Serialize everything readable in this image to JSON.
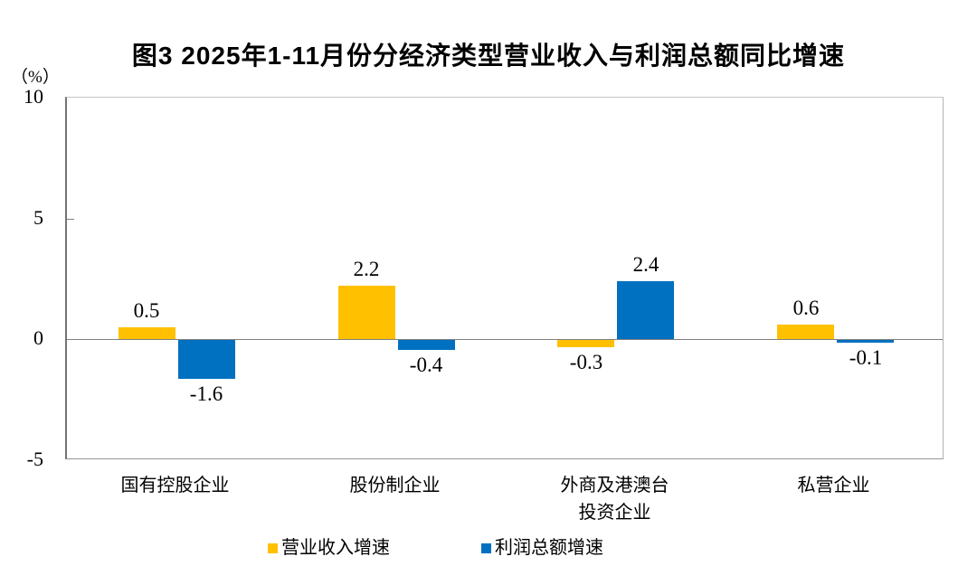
{
  "title": "图3  2025年1-11月份分经济类型营业收入与利润总额同比增速",
  "chart_data": {
    "type": "bar",
    "title": "图3  2025年1-11月份分经济类型营业收入与利润总额同比增速",
    "unit_label": "（%）",
    "categories": [
      "国有控股企业",
      "股份制企业",
      "外商及港澳台\n投资企业",
      "私营企业"
    ],
    "series": [
      {
        "name": "营业收入增速",
        "color": "#FFC000",
        "values": [
          0.5,
          2.2,
          -0.3,
          0.6
        ]
      },
      {
        "name": "利润总额增速",
        "color": "#0070C0",
        "values": [
          -1.6,
          -0.4,
          2.4,
          -0.1
        ]
      }
    ],
    "ylim": [
      -5,
      10
    ],
    "yticks": [
      10,
      5,
      0,
      -5
    ],
    "grid": false,
    "legend_position": "bottom",
    "value_label_decimals": 1
  },
  "colors": {
    "series_revenue": "#FFC000",
    "series_profit": "#0070C0",
    "zero_line": "#808080",
    "text": "#000000",
    "background": "#FFFFFF"
  }
}
